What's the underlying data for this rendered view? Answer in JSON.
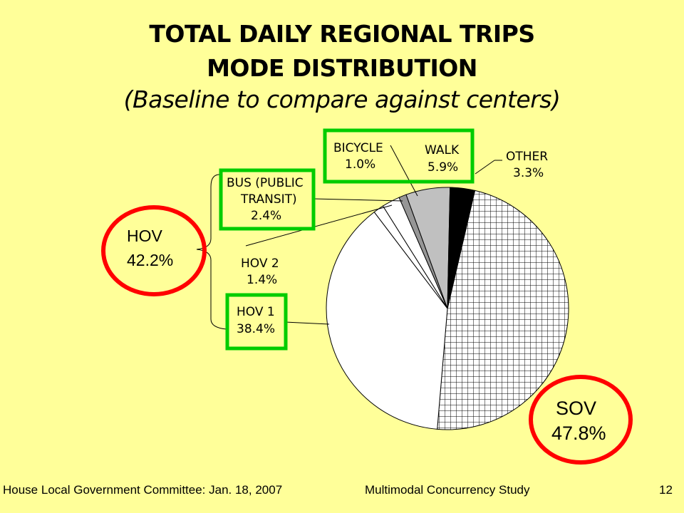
{
  "header": {
    "title_line1": "TOTAL DAILY REGIONAL TRIPS",
    "title_line2": "MODE DISTRIBUTION",
    "subtitle": "(Baseline to compare against centers)"
  },
  "chart_data": {
    "type": "pie",
    "title": "TOTAL DAILY REGIONAL TRIPS MODE DISTRIBUTION",
    "subtitle": "(Baseline to compare against centers)",
    "slices": [
      {
        "key": "sov",
        "label": "SOV",
        "value": 47.8,
        "display": "47.8%",
        "fill": "grid"
      },
      {
        "key": "hov1",
        "label": "HOV 1",
        "value": 38.4,
        "display": "38.4%",
        "fill": "#ffffff"
      },
      {
        "key": "hov2",
        "label": "HOV 2",
        "value": 1.4,
        "display": "1.4%",
        "fill": "#ffffff"
      },
      {
        "key": "bus",
        "label_line1": "BUS (PUBLIC",
        "label_line2": "TRANSIT)",
        "value": 2.4,
        "display": "2.4%",
        "fill": "#ffffff"
      },
      {
        "key": "bicycle",
        "label": "BICYCLE",
        "value": 1.0,
        "display": "1.0%",
        "fill": "#969696"
      },
      {
        "key": "walk",
        "label": "WALK",
        "value": 5.9,
        "display": "5.9%",
        "fill": "#c0c0c0"
      },
      {
        "key": "other",
        "label": "OTHER",
        "value": 3.3,
        "display": "3.3%",
        "fill": "#000000"
      }
    ],
    "group": {
      "label": "HOV",
      "display": "42.2%"
    }
  },
  "colors": {
    "background": "#ffff99",
    "highlight_box": "#00cc00",
    "highlight_circle": "#ff0000"
  },
  "footer": {
    "left": "House Local Government Committee: Jan. 18, 2007",
    "center": "Multimodal Concurrency Study",
    "page": "12"
  }
}
